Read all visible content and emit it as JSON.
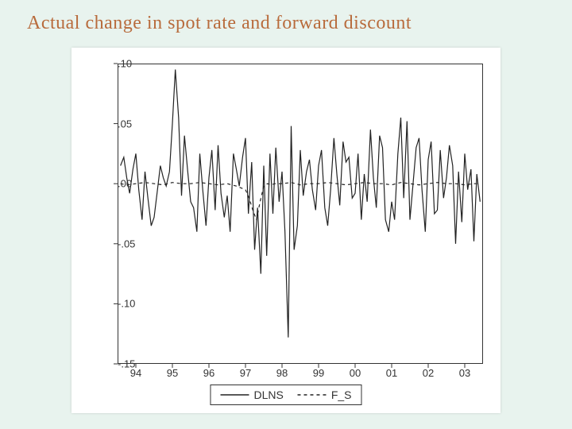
{
  "title": "Actual change in spot rate and forward discount",
  "chart": {
    "type": "line",
    "background_color": "#ffffff",
    "page_background": "#e8f3ee",
    "border_color": "#333333",
    "grid": false,
    "ylim": [
      -0.15,
      0.1
    ],
    "yticks": [
      -0.15,
      -0.1,
      -0.05,
      0.0,
      0.05,
      0.1
    ],
    "ytick_labels": [
      "-.15",
      "-.10",
      "-.05",
      ".00",
      ".05",
      ".10"
    ],
    "xlim": [
      1993.5,
      2003.5
    ],
    "xticks": [
      1994,
      1995,
      1996,
      1997,
      1998,
      1999,
      2000,
      2001,
      2002,
      2003
    ],
    "xtick_labels": [
      "94",
      "95",
      "96",
      "97",
      "98",
      "99",
      "00",
      "01",
      "02",
      "03"
    ],
    "label_fontsize": 13,
    "label_color": "#333333",
    "title_color": "#b86b3c",
    "title_fontsize": 24,
    "line_width": 1.2,
    "series": [
      {
        "name": "DLNS",
        "label": "DLNS",
        "color": "#222222",
        "style": "solid",
        "dash": "",
        "x": [
          1993.58,
          1993.67,
          1993.75,
          1993.83,
          1993.92,
          1994.0,
          1994.08,
          1994.17,
          1994.25,
          1994.33,
          1994.42,
          1994.5,
          1994.58,
          1994.67,
          1994.75,
          1994.83,
          1994.92,
          1995.0,
          1995.08,
          1995.17,
          1995.25,
          1995.33,
          1995.42,
          1995.5,
          1995.58,
          1995.67,
          1995.75,
          1995.83,
          1995.92,
          1996.0,
          1996.08,
          1996.17,
          1996.25,
          1996.33,
          1996.42,
          1996.5,
          1996.58,
          1996.67,
          1996.75,
          1996.83,
          1996.92,
          1997.0,
          1997.08,
          1997.17,
          1997.25,
          1997.33,
          1997.42,
          1997.5,
          1997.58,
          1997.67,
          1997.75,
          1997.83,
          1997.92,
          1998.0,
          1998.08,
          1998.17,
          1998.25,
          1998.33,
          1998.42,
          1998.5,
          1998.58,
          1998.67,
          1998.75,
          1998.83,
          1998.92,
          1999.0,
          1999.08,
          1999.17,
          1999.25,
          1999.33,
          1999.42,
          1999.5,
          1999.58,
          1999.67,
          1999.75,
          1999.83,
          1999.92,
          2000.0,
          2000.08,
          2000.17,
          2000.25,
          2000.33,
          2000.42,
          2000.5,
          2000.58,
          2000.67,
          2000.75,
          2000.83,
          2000.92,
          2001.0,
          2001.08,
          2001.17,
          2001.25,
          2001.33,
          2001.42,
          2001.5,
          2001.58,
          2001.67,
          2001.75,
          2001.83,
          2001.92,
          2002.0,
          2002.08,
          2002.17,
          2002.25,
          2002.33,
          2002.42,
          2002.5,
          2002.58,
          2002.67,
          2002.75,
          2002.83,
          2002.92,
          2003.0,
          2003.08,
          2003.17,
          2003.25,
          2003.33,
          2003.42
        ],
        "y": [
          0.015,
          0.022,
          0.005,
          -0.008,
          0.012,
          0.025,
          -0.005,
          -0.03,
          0.01,
          -0.012,
          -0.035,
          -0.028,
          -0.008,
          0.015,
          0.005,
          -0.002,
          0.01,
          0.05,
          0.095,
          0.055,
          -0.01,
          0.04,
          0.01,
          -0.015,
          -0.02,
          -0.04,
          0.025,
          -0.005,
          -0.035,
          0.005,
          0.028,
          -0.022,
          0.032,
          -0.008,
          -0.028,
          -0.01,
          -0.04,
          0.025,
          0.012,
          -0.002,
          0.022,
          0.038,
          -0.025,
          0.018,
          -0.055,
          -0.02,
          -0.075,
          0.015,
          -0.06,
          0.025,
          -0.025,
          0.03,
          -0.015,
          0.01,
          -0.04,
          -0.128,
          0.048,
          -0.055,
          -0.035,
          0.028,
          -0.01,
          0.01,
          0.02,
          -0.005,
          -0.022,
          0.015,
          0.028,
          -0.02,
          -0.035,
          -0.005,
          0.038,
          0.008,
          -0.018,
          0.035,
          0.018,
          0.022,
          -0.012,
          -0.008,
          0.025,
          -0.03,
          0.008,
          -0.015,
          0.045,
          0.005,
          -0.02,
          0.04,
          0.03,
          -0.03,
          -0.04,
          -0.015,
          -0.03,
          0.025,
          0.055,
          -0.012,
          0.052,
          -0.03,
          -0.002,
          0.03,
          0.038,
          -0.005,
          -0.04,
          0.02,
          0.035,
          -0.025,
          -0.022,
          0.028,
          -0.012,
          0.005,
          0.032,
          0.015,
          -0.05,
          0.01,
          -0.032,
          0.025,
          -0.005,
          0.012,
          -0.048,
          0.008,
          -0.015
        ]
      },
      {
        "name": "F_S",
        "label": "F_S",
        "color": "#222222",
        "style": "dashed",
        "dash": "4,4",
        "x": [
          1993.58,
          1993.75,
          1994.0,
          1994.25,
          1994.5,
          1994.75,
          1995.0,
          1995.25,
          1995.5,
          1995.75,
          1996.0,
          1996.25,
          1996.5,
          1996.75,
          1997.0,
          1997.1,
          1997.2,
          1997.3,
          1997.4,
          1997.5,
          1997.6,
          1997.7,
          1997.8,
          1997.9,
          1998.0,
          1998.25,
          1998.5,
          1998.75,
          1999.0,
          1999.25,
          1999.5,
          1999.75,
          2000.0,
          2000.25,
          2000.5,
          2000.75,
          2001.0,
          2001.25,
          2001.5,
          2001.75,
          2002.0,
          2002.25,
          2002.5,
          2002.75,
          2003.0,
          2003.25,
          2003.42
        ],
        "y": [
          0.0,
          -0.001,
          0.0,
          0.001,
          0.0,
          -0.001,
          0.001,
          0.0,
          0.0,
          0.001,
          0.0,
          -0.001,
          0.0,
          -0.002,
          -0.005,
          -0.012,
          -0.022,
          -0.03,
          -0.015,
          -0.002,
          0.0,
          -0.001,
          0.0,
          0.0,
          0.0,
          0.001,
          -0.001,
          0.0,
          0.0,
          0.001,
          0.0,
          -0.001,
          0.0,
          0.001,
          0.0,
          0.0,
          -0.001,
          0.001,
          0.0,
          -0.001,
          0.0,
          0.001,
          0.0,
          0.0,
          -0.001,
          0.0,
          0.0
        ]
      }
    ],
    "legend": {
      "position": "bottom-center",
      "border": "#333333",
      "items": [
        {
          "label": "DLNS",
          "style": "solid"
        },
        {
          "label": "F_S",
          "style": "dashed"
        }
      ]
    }
  }
}
